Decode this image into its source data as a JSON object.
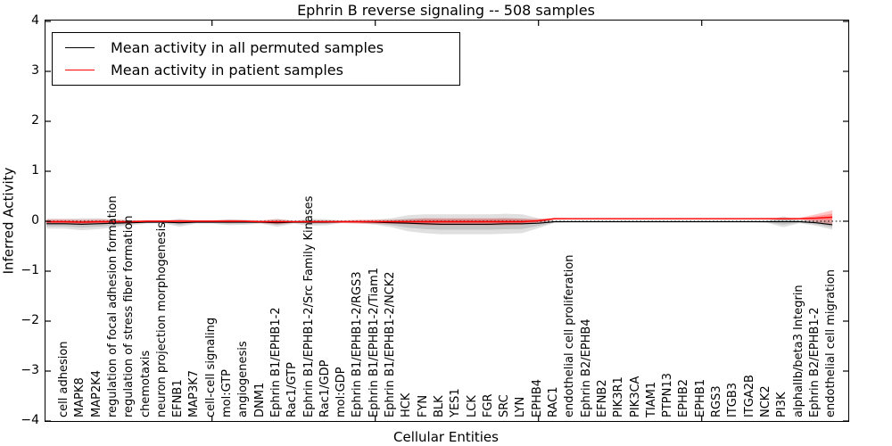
{
  "chart_data": {
    "type": "line",
    "title": "Ephrin B reverse signaling -- 508 samples",
    "xlabel": "Cellular Entities",
    "ylabel": "Inferred Activity",
    "ylim": [
      -4,
      4
    ],
    "ytick_labels": [
      "4",
      "3",
      "2",
      "1",
      "0",
      "−1",
      "−2",
      "−3",
      "−4"
    ],
    "grid": false,
    "zero_line": "dotted-black",
    "legend_position": "upper-left",
    "categories": [
      "cell adhesion",
      "MAPK8",
      "MAP2K4",
      "regulation of focal adhesion formation",
      "regulation of stress fiber formation",
      "chemotaxis",
      "neuron projection morphogenesis",
      "EFNB1",
      "MAP3K7",
      "cell-cell signaling",
      "mol:GTP",
      "angiogenesis",
      "DNM1",
      "Ephrin B1/EPHB1-2",
      "Rac1/GTP",
      "Ephrin B1/EPHB1-2/Src Family Kinases",
      "Rac1/GDP",
      "mol:GDP",
      "Ephrin B1/EPHB1-2/RGS3",
      "Ephrin B1/EPHB1-2/Tiam1",
      "Ephrin B1/EPHB1-2/NCK2",
      "HCK",
      "FYN",
      "BLK",
      "YES1",
      "LCK",
      "FGR",
      "SRC",
      "LYN",
      "EPHB4",
      "RAC1",
      "endothelial cell proliferation",
      "Ephrin B2/EPHB4",
      "EFNB2",
      "PIK3R1",
      "PIK3CA",
      "TIAM1",
      "PTPN13",
      "EPHB2",
      "EPHB1",
      "RGS3",
      "ITGB3",
      "ITGA2B",
      "NCK2",
      "PI3K",
      "alphaIIb/beta3 Integrin",
      "Ephrin B2/EPHB1-2",
      "endothelial cell migration"
    ],
    "series": [
      {
        "name": "Mean activity in all permuted samples",
        "color": "#000000",
        "band_color": "#000000",
        "values": [
          -0.05,
          -0.06,
          -0.05,
          -0.04,
          -0.03,
          -0.02,
          -0.02,
          -0.03,
          -0.02,
          -0.02,
          -0.02,
          -0.02,
          -0.02,
          -0.03,
          -0.02,
          -0.02,
          -0.02,
          -0.01,
          -0.01,
          -0.02,
          -0.03,
          -0.04,
          -0.05,
          -0.06,
          -0.06,
          -0.06,
          -0.06,
          -0.05,
          -0.05,
          -0.04,
          -0.01,
          -0.01,
          -0.01,
          -0.01,
          -0.01,
          -0.01,
          -0.01,
          -0.01,
          -0.01,
          -0.01,
          -0.01,
          -0.01,
          -0.01,
          -0.01,
          -0.01,
          -0.01,
          -0.03,
          -0.07
        ],
        "band_halfwidth": [
          0.1,
          0.12,
          0.11,
          0.08,
          0.05,
          0.03,
          0.02,
          0.08,
          0.03,
          0.03,
          0.06,
          0.05,
          0.03,
          0.08,
          0.03,
          0.07,
          0.06,
          0.02,
          0.03,
          0.05,
          0.09,
          0.16,
          0.19,
          0.2,
          0.2,
          0.2,
          0.2,
          0.2,
          0.19,
          0.1,
          0.02,
          0.015,
          0.015,
          0.015,
          0.015,
          0.015,
          0.015,
          0.015,
          0.015,
          0.015,
          0.015,
          0.015,
          0.015,
          0.02,
          0.11,
          0.03,
          0.06,
          0.1
        ]
      },
      {
        "name": "Mean activity in patient samples",
        "color": "#ff0000",
        "band_color": "#ff0000",
        "values": [
          -0.01,
          -0.02,
          -0.01,
          -0.01,
          -0.01,
          0.0,
          0.0,
          0.0,
          0.0,
          0.0,
          0.0,
          0.0,
          -0.01,
          -0.01,
          -0.01,
          -0.01,
          -0.01,
          -0.01,
          -0.01,
          -0.01,
          -0.01,
          -0.01,
          -0.01,
          -0.01,
          -0.01,
          -0.01,
          -0.01,
          -0.01,
          -0.01,
          0.01,
          0.05,
          0.05,
          0.05,
          0.05,
          0.05,
          0.05,
          0.05,
          0.05,
          0.05,
          0.05,
          0.05,
          0.05,
          0.05,
          0.05,
          0.05,
          0.05,
          0.06,
          0.08
        ],
        "band_halfwidth": [
          0.05,
          0.05,
          0.05,
          0.04,
          0.03,
          0.02,
          0.02,
          0.03,
          0.02,
          0.02,
          0.03,
          0.02,
          0.03,
          0.05,
          0.02,
          0.03,
          0.03,
          0.03,
          0.04,
          0.04,
          0.04,
          0.05,
          0.07,
          0.07,
          0.07,
          0.07,
          0.07,
          0.07,
          0.06,
          0.04,
          0.02,
          0.012,
          0.012,
          0.012,
          0.012,
          0.012,
          0.012,
          0.012,
          0.012,
          0.012,
          0.012,
          0.012,
          0.012,
          0.015,
          0.02,
          0.02,
          0.08,
          0.14
        ]
      }
    ]
  },
  "colors": {
    "background": "#ffffff",
    "axis": "#000000",
    "permuted_line": "#000000",
    "patient_line": "#ff0000"
  }
}
